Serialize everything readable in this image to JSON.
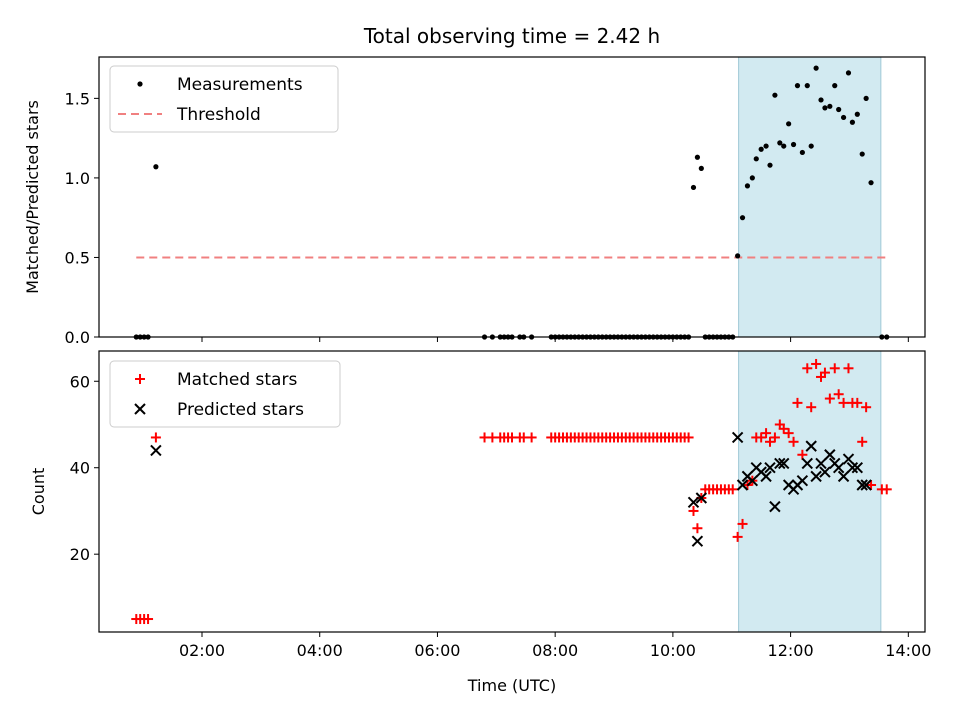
{
  "figure": {
    "title": "Total observing time = 2.42 h"
  },
  "colors": {
    "measurement": "#000000",
    "threshold": "#f08080",
    "matched": "#ff0000",
    "predicted": "#000000",
    "span": "#add8e6"
  },
  "chart_data": [
    {
      "type": "scatter",
      "title": "Total observing time = 2.42 h",
      "xlabel": "",
      "ylabel": "Matched/Predicted stars",
      "xlim": [
        "00:15",
        "14:17"
      ],
      "ylim": [
        0,
        1.76
      ],
      "yticks": [
        "0.0",
        "0.5",
        "1.0",
        "1.5"
      ],
      "legend": "top-left",
      "highlight_span": [
        "11:07",
        "13:32"
      ],
      "threshold": {
        "name": "Threshold",
        "y": 0.5,
        "x_range": [
          "00:53",
          "13:40"
        ]
      },
      "series": [
        {
          "name": "Measurements",
          "points": [
            [
              "00:53",
              0
            ],
            [
              "00:57",
              0
            ],
            [
              "01:01",
              0
            ],
            [
              "01:05",
              0
            ],
            [
              "01:13",
              1.07
            ],
            [
              "06:48",
              0
            ],
            [
              "06:56",
              0
            ],
            [
              "07:04",
              0
            ],
            [
              "07:08",
              0
            ],
            [
              "07:12",
              0
            ],
            [
              "07:16",
              0
            ],
            [
              "07:24",
              0
            ],
            [
              "07:28",
              0
            ],
            [
              "07:36",
              0
            ],
            [
              "07:56",
              0
            ],
            [
              "08:00",
              0
            ],
            [
              "08:04",
              0
            ],
            [
              "08:08",
              0
            ],
            [
              "08:12",
              0
            ],
            [
              "08:16",
              0
            ],
            [
              "08:20",
              0
            ],
            [
              "08:24",
              0
            ],
            [
              "08:28",
              0
            ],
            [
              "08:32",
              0
            ],
            [
              "08:36",
              0
            ],
            [
              "08:40",
              0
            ],
            [
              "08:44",
              0
            ],
            [
              "08:48",
              0
            ],
            [
              "08:52",
              0
            ],
            [
              "08:56",
              0
            ],
            [
              "09:00",
              0
            ],
            [
              "09:04",
              0
            ],
            [
              "09:08",
              0
            ],
            [
              "09:12",
              0
            ],
            [
              "09:16",
              0
            ],
            [
              "09:20",
              0
            ],
            [
              "09:24",
              0
            ],
            [
              "09:28",
              0
            ],
            [
              "09:32",
              0
            ],
            [
              "09:36",
              0
            ],
            [
              "09:40",
              0
            ],
            [
              "09:44",
              0
            ],
            [
              "09:48",
              0
            ],
            [
              "09:52",
              0
            ],
            [
              "09:56",
              0
            ],
            [
              "10:00",
              0
            ],
            [
              "10:04",
              0
            ],
            [
              "10:08",
              0
            ],
            [
              "10:12",
              0
            ],
            [
              "10:16",
              0
            ],
            [
              "10:21",
              0.94
            ],
            [
              "10:25",
              1.13
            ],
            [
              "10:29",
              1.06
            ],
            [
              "10:33",
              0
            ],
            [
              "10:37",
              0
            ],
            [
              "10:41",
              0
            ],
            [
              "10:45",
              0
            ],
            [
              "10:49",
              0
            ],
            [
              "10:53",
              0
            ],
            [
              "10:57",
              0
            ],
            [
              "11:01",
              0
            ],
            [
              "11:06",
              0.51
            ],
            [
              "11:11",
              0.75
            ],
            [
              "11:16",
              0.95
            ],
            [
              "11:21",
              1.0
            ],
            [
              "11:25",
              1.12
            ],
            [
              "11:30",
              1.18
            ],
            [
              "11:35",
              1.2
            ],
            [
              "11:39",
              1.08
            ],
            [
              "11:44",
              1.52
            ],
            [
              "11:49",
              1.22
            ],
            [
              "11:53",
              1.2
            ],
            [
              "11:58",
              1.34
            ],
            [
              "12:03",
              1.21
            ],
            [
              "12:07",
              1.58
            ],
            [
              "12:12",
              1.16
            ],
            [
              "12:17",
              1.58
            ],
            [
              "12:21",
              1.2
            ],
            [
              "12:26",
              1.69
            ],
            [
              "12:31",
              1.49
            ],
            [
              "12:35",
              1.44
            ],
            [
              "12:40",
              1.45
            ],
            [
              "12:45",
              1.58
            ],
            [
              "12:49",
              1.43
            ],
            [
              "12:54",
              1.38
            ],
            [
              "12:59",
              1.66
            ],
            [
              "13:03",
              1.35
            ],
            [
              "13:08",
              1.4
            ],
            [
              "13:13",
              1.15
            ],
            [
              "13:17",
              1.5
            ],
            [
              "13:22",
              0.97
            ],
            [
              "13:33",
              0
            ],
            [
              "13:38",
              0
            ]
          ]
        }
      ]
    },
    {
      "type": "scatter",
      "xlabel": "Time (UTC)",
      "ylabel": "Count",
      "xlim": [
        "00:15",
        "14:17"
      ],
      "ylim": [
        2,
        67
      ],
      "xticks": [
        "02:00",
        "04:00",
        "06:00",
        "08:00",
        "10:00",
        "12:00",
        "14:00"
      ],
      "yticks": [
        "20",
        "40",
        "60"
      ],
      "legend": "top-left",
      "highlight_span": [
        "11:07",
        "13:32"
      ],
      "series": [
        {
          "name": "Matched stars",
          "marker": "+",
          "points": [
            [
              "00:53",
              5
            ],
            [
              "00:57",
              5
            ],
            [
              "01:01",
              5
            ],
            [
              "01:05",
              5
            ],
            [
              "01:13",
              47
            ],
            [
              "06:48",
              47
            ],
            [
              "06:56",
              47
            ],
            [
              "07:04",
              47
            ],
            [
              "07:08",
              47
            ],
            [
              "07:12",
              47
            ],
            [
              "07:16",
              47
            ],
            [
              "07:24",
              47
            ],
            [
              "07:28",
              47
            ],
            [
              "07:36",
              47
            ],
            [
              "07:56",
              47
            ],
            [
              "08:00",
              47
            ],
            [
              "08:04",
              47
            ],
            [
              "08:08",
              47
            ],
            [
              "08:12",
              47
            ],
            [
              "08:16",
              47
            ],
            [
              "08:20",
              47
            ],
            [
              "08:24",
              47
            ],
            [
              "08:28",
              47
            ],
            [
              "08:32",
              47
            ],
            [
              "08:36",
              47
            ],
            [
              "08:40",
              47
            ],
            [
              "08:44",
              47
            ],
            [
              "08:48",
              47
            ],
            [
              "08:52",
              47
            ],
            [
              "08:56",
              47
            ],
            [
              "09:00",
              47
            ],
            [
              "09:04",
              47
            ],
            [
              "09:08",
              47
            ],
            [
              "09:12",
              47
            ],
            [
              "09:16",
              47
            ],
            [
              "09:20",
              47
            ],
            [
              "09:24",
              47
            ],
            [
              "09:28",
              47
            ],
            [
              "09:32",
              47
            ],
            [
              "09:36",
              47
            ],
            [
              "09:40",
              47
            ],
            [
              "09:44",
              47
            ],
            [
              "09:48",
              47
            ],
            [
              "09:52",
              47
            ],
            [
              "09:56",
              47
            ],
            [
              "10:00",
              47
            ],
            [
              "10:04",
              47
            ],
            [
              "10:08",
              47
            ],
            [
              "10:12",
              47
            ],
            [
              "10:16",
              47
            ],
            [
              "10:21",
              30
            ],
            [
              "10:25",
              26
            ],
            [
              "10:29",
              33
            ],
            [
              "10:33",
              35
            ],
            [
              "10:37",
              35
            ],
            [
              "10:41",
              35
            ],
            [
              "10:45",
              35
            ],
            [
              "10:49",
              35
            ],
            [
              "10:53",
              35
            ],
            [
              "10:57",
              35
            ],
            [
              "11:01",
              35
            ],
            [
              "11:06",
              24
            ],
            [
              "11:11",
              27
            ],
            [
              "11:16",
              36
            ],
            [
              "11:21",
              37
            ],
            [
              "11:25",
              47
            ],
            [
              "11:30",
              47
            ],
            [
              "11:35",
              48
            ],
            [
              "11:39",
              46
            ],
            [
              "11:44",
              47
            ],
            [
              "11:49",
              50
            ],
            [
              "11:53",
              49
            ],
            [
              "11:58",
              48
            ],
            [
              "12:03",
              46
            ],
            [
              "12:07",
              55
            ],
            [
              "12:12",
              43
            ],
            [
              "12:17",
              63
            ],
            [
              "12:21",
              54
            ],
            [
              "12:26",
              64
            ],
            [
              "12:31",
              61
            ],
            [
              "12:35",
              62
            ],
            [
              "12:40",
              56
            ],
            [
              "12:45",
              63
            ],
            [
              "12:49",
              57
            ],
            [
              "12:54",
              55
            ],
            [
              "12:59",
              63
            ],
            [
              "13:03",
              55
            ],
            [
              "13:08",
              55
            ],
            [
              "13:13",
              46
            ],
            [
              "13:17",
              54
            ],
            [
              "13:22",
              36
            ],
            [
              "13:33",
              35
            ],
            [
              "13:38",
              35
            ]
          ]
        },
        {
          "name": "Predicted stars",
          "marker": "x",
          "points": [
            [
              "01:13",
              44
            ],
            [
              "10:21",
              32
            ],
            [
              "10:25",
              23
            ],
            [
              "10:29",
              33
            ],
            [
              "11:06",
              47
            ],
            [
              "11:11",
              36
            ],
            [
              "11:16",
              38
            ],
            [
              "11:21",
              37
            ],
            [
              "11:25",
              40
            ],
            [
              "11:30",
              39
            ],
            [
              "11:35",
              38
            ],
            [
              "11:39",
              40
            ],
            [
              "11:44",
              31
            ],
            [
              "11:49",
              41
            ],
            [
              "11:53",
              41
            ],
            [
              "11:58",
              36
            ],
            [
              "12:03",
              35
            ],
            [
              "12:07",
              36
            ],
            [
              "12:12",
              37
            ],
            [
              "12:17",
              41
            ],
            [
              "12:21",
              45
            ],
            [
              "12:26",
              38
            ],
            [
              "12:31",
              41
            ],
            [
              "12:35",
              39
            ],
            [
              "12:40",
              43
            ],
            [
              "12:45",
              41
            ],
            [
              "12:49",
              40
            ],
            [
              "12:54",
              38
            ],
            [
              "12:59",
              42
            ],
            [
              "13:03",
              40
            ],
            [
              "13:08",
              40
            ],
            [
              "13:13",
              36
            ],
            [
              "13:17",
              36
            ]
          ]
        }
      ]
    }
  ]
}
